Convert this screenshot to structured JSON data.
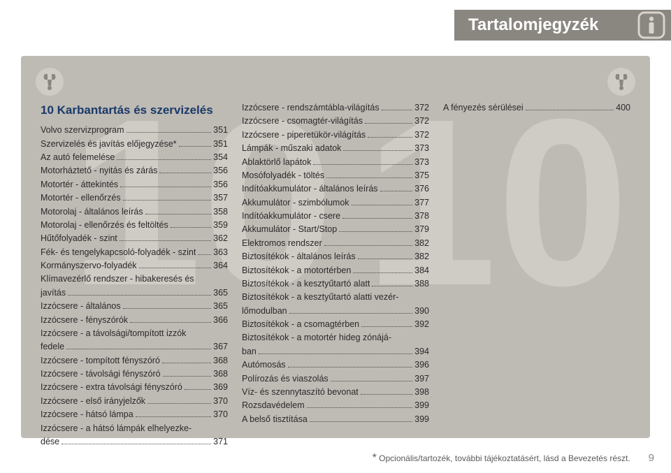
{
  "header": {
    "title": "Tartalomjegyzék"
  },
  "watermark": "10",
  "chapter": {
    "title": "10 Karbantartás és szervizelés"
  },
  "columns": [
    [
      {
        "label": "Volvo szervizprogram",
        "page": "351"
      },
      {
        "label": "Szervizelés és javítás előjegyzése*",
        "page": "351"
      },
      {
        "label": "Az autó felemelése",
        "page": "354"
      },
      {
        "label": "Motorháztető - nyitás és zárás",
        "page": "356"
      },
      {
        "label": "Motortér - áttekintés",
        "page": "356"
      },
      {
        "label": "Motortér - ellenőrzés",
        "page": "357"
      },
      {
        "label": "Motorolaj - általános leírás",
        "page": "358"
      },
      {
        "label": "Motorolaj - ellenőrzés és feltöltés",
        "page": "359"
      },
      {
        "label": "Hűtőfolyadék - szint",
        "page": "362"
      },
      {
        "label": "Fék- és tengelykapcsoló-folyadék - szint",
        "page": "363"
      },
      {
        "label": "Kormányszervo-folyadék",
        "page": "364"
      },
      {
        "first": "Klímavezérlő rendszer - hibakeresés és",
        "label": "javítás",
        "page": "365"
      },
      {
        "label": "Izzócsere - általános",
        "page": "365"
      },
      {
        "label": "Izzócsere - fényszórók",
        "page": "366"
      },
      {
        "first": "Izzócsere - a távolsági/tompított izzók",
        "label": "fedele",
        "page": "367"
      },
      {
        "label": "Izzócsere - tompított fényszóró",
        "page": "368"
      },
      {
        "label": "Izzócsere - távolsági fényszóró",
        "page": "368"
      },
      {
        "label": "Izzócsere - extra távolsági fényszóró",
        "page": "369"
      },
      {
        "label": "Izzócsere - első irányjelzők",
        "page": "370"
      },
      {
        "label": "Izzócsere - hátsó lámpa",
        "page": "370"
      },
      {
        "first": "Izzócsere - a hátsó lámpák elhelyezke-",
        "label": "dése",
        "page": "371"
      }
    ],
    [
      {
        "label": "Izzócsere - rendszámtábla-világítás",
        "page": "372"
      },
      {
        "label": "Izzócsere - csomagtér-világítás",
        "page": "372"
      },
      {
        "label": "Izzócsere - piperetükör-világítás",
        "page": "372"
      },
      {
        "label": "Lámpák - műszaki adatok",
        "page": "373"
      },
      {
        "label": "Ablaktörlő lapátok",
        "page": "373"
      },
      {
        "label": "Mosófolyadék - töltés",
        "page": "375"
      },
      {
        "label": "Indítóakkumulátor - általános leírás",
        "page": "376"
      },
      {
        "label": "Akkumulátor - szimbólumok",
        "page": "377"
      },
      {
        "label": "Indítóakkumulátor - csere",
        "page": "378"
      },
      {
        "label": "Akkumulátor - Start/Stop",
        "page": "379"
      },
      {
        "label": "Elektromos rendszer",
        "page": "382"
      },
      {
        "label": "Biztosítékok - általános leírás",
        "page": "382"
      },
      {
        "label": "Biztosítékok - a motortérben",
        "page": "384"
      },
      {
        "label": "Biztosítékok - a kesztyűtartó alatt",
        "page": "388"
      },
      {
        "first": "Biztosítékok - a kesztyűtartó alatti vezér-",
        "label": "lőmodulban",
        "page": "390"
      },
      {
        "label": "Biztosítékok - a csomagtérben",
        "page": "392"
      },
      {
        "first": "Biztosítékok - a motortér hideg zónájá-",
        "label": "ban",
        "page": "394"
      },
      {
        "label": "Autómosás",
        "page": "396"
      },
      {
        "label": "Polírozás és viaszolás",
        "page": "397"
      },
      {
        "label": "Víz- és szennytaszító bevonat",
        "page": "398"
      },
      {
        "label": "Rozsdavédelem",
        "page": "399"
      },
      {
        "label": "A belső tisztítása",
        "page": "399"
      }
    ],
    [
      {
        "label": "A fényezés sérülései",
        "page": "400"
      }
    ]
  ],
  "footer": {
    "note": "Opcionális/tartozék, további tájékoztatásért, lásd a Bevezetés részt.",
    "asterisk": "*",
    "page": "9"
  }
}
